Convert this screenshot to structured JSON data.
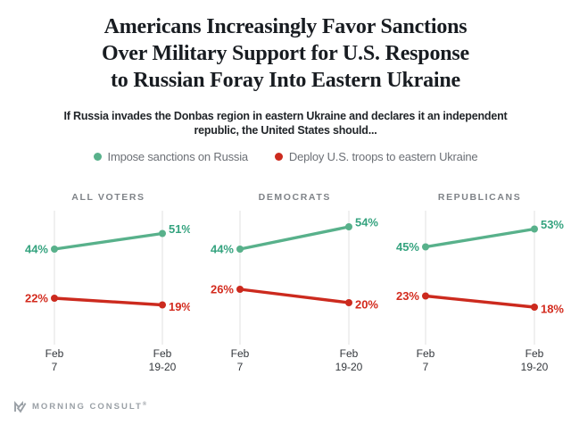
{
  "header": {
    "title_lines": [
      "Americans Increasingly Favor Sanctions",
      "Over Military Support for U.S. Response",
      "to Russian Foray Into Eastern Ukraine"
    ],
    "question_lines": [
      "If Russia invades the Donbas region in eastern Ukraine and declares it an independent",
      "republic, the United States should..."
    ]
  },
  "legend": {
    "items": [
      {
        "label": "Impose sanctions on Russia",
        "color": "#58b18b"
      },
      {
        "label": "Deploy U.S. troops to eastern Ukraine",
        "color": "#cc2a1e"
      }
    ]
  },
  "chart_data": {
    "type": "line",
    "categories": [
      "Feb 7",
      "Feb 19-20"
    ],
    "x_tick_lines": [
      [
        "Feb",
        "7"
      ],
      [
        "Feb",
        "19-20"
      ]
    ],
    "value_suffix": "%",
    "ylim": [
      0,
      62
    ],
    "grid": "vertical-only",
    "legend_position": "top",
    "series_names": [
      "Impose sanctions on Russia",
      "Deploy U.S. troops to eastern Ukraine"
    ],
    "series_colors": [
      "#58b18b",
      "#cc2a1e"
    ],
    "label_colors": [
      "#35a37f",
      "#d32b1e"
    ],
    "panels": [
      {
        "title": "ALL VOTERS",
        "values": [
          [
            44,
            51
          ],
          [
            22,
            19
          ]
        ]
      },
      {
        "title": "DEMOCRATS",
        "values": [
          [
            44,
            54
          ],
          [
            26,
            20
          ]
        ]
      },
      {
        "title": "REPUBLICANS",
        "values": [
          [
            45,
            53
          ],
          [
            23,
            18
          ]
        ]
      }
    ]
  },
  "colors": {
    "gridline": "#e2e2e2",
    "tick_label": "#33373c",
    "panel_title": "#7f8388",
    "brand": "#9aa0a6"
  },
  "footer": {
    "brand": "MORNING CONSULT",
    "trademark_symbol": "®"
  }
}
